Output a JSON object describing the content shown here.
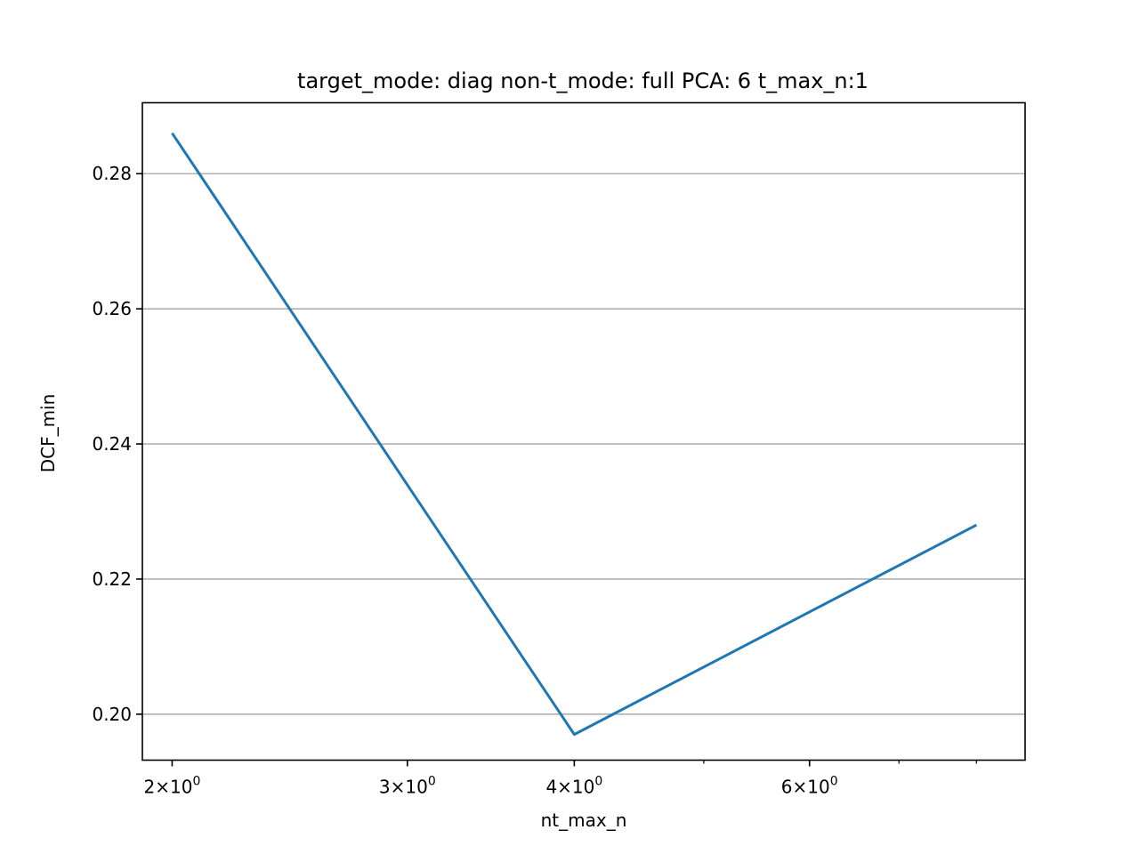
{
  "chart_data": {
    "type": "line",
    "title": "target_mode: diag non-t_mode: full PCA: 6 t_max_n:1",
    "xlabel": "nt_max_n",
    "ylabel": "DCF_min",
    "xscale": "log",
    "xlim": [
      1.9,
      8.7
    ],
    "ylim": [
      0.1932,
      0.2905
    ],
    "x_ticks": [
      {
        "value": 2,
        "base": "2",
        "exp": "0"
      },
      {
        "value": 3,
        "base": "3",
        "exp": "0"
      },
      {
        "value": 4,
        "base": "4",
        "exp": "0"
      },
      {
        "value": 6,
        "base": "6",
        "exp": "0"
      }
    ],
    "x_minor_ticks": [
      5,
      7,
      8
    ],
    "y_ticks": [
      {
        "value": 0.2,
        "label": "0.20"
      },
      {
        "value": 0.22,
        "label": "0.22"
      },
      {
        "value": 0.24,
        "label": "0.24"
      },
      {
        "value": 0.26,
        "label": "0.26"
      },
      {
        "value": 0.28,
        "label": "0.28"
      }
    ],
    "grid": {
      "y": true,
      "x": false
    },
    "series": [
      {
        "color": "#1f77b4",
        "x": [
          2,
          4,
          8
        ],
        "y": [
          0.286,
          0.197,
          0.228
        ]
      }
    ]
  }
}
